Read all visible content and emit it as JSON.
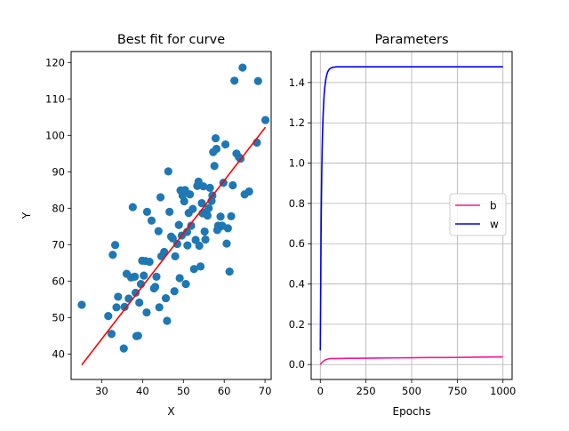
{
  "chart_data": [
    {
      "type": "scatter",
      "title": "Best fit for curve",
      "xlabel": "X",
      "ylabel": "Y",
      "xlim": [
        22.5,
        71.5
      ],
      "ylim": [
        33,
        123
      ],
      "xticks": [
        30,
        40,
        50,
        60,
        70
      ],
      "yticks": [
        40,
        50,
        60,
        70,
        80,
        90,
        100,
        110,
        120
      ],
      "grid": false,
      "colors": {
        "points": "#1f77b4",
        "fit_line": "#ff0000"
      },
      "fit_line": {
        "slope": 1.45,
        "intercept": 0.6,
        "x_range": [
          25.1,
          70.1
        ]
      },
      "points": [
        [
          25.1,
          53.5
        ],
        [
          31.6,
          50.4
        ],
        [
          32.4,
          45.5
        ],
        [
          32.7,
          67.2
        ],
        [
          33.3,
          69.9
        ],
        [
          33.6,
          52.8
        ],
        [
          34.0,
          55.7
        ],
        [
          35.4,
          41.5
        ],
        [
          35.6,
          52.9
        ],
        [
          36.1,
          62.0
        ],
        [
          36.6,
          55.2
        ],
        [
          37.2,
          61.0
        ],
        [
          37.6,
          80.3
        ],
        [
          38.1,
          61.2
        ],
        [
          38.3,
          56.8
        ],
        [
          38.5,
          44.9
        ],
        [
          38.9,
          45.0
        ],
        [
          39.2,
          54.1
        ],
        [
          39.6,
          59.2
        ],
        [
          39.9,
          65.6
        ],
        [
          40.3,
          61.5
        ],
        [
          40.7,
          65.5
        ],
        [
          41.0,
          51.4
        ],
        [
          41.1,
          79.0
        ],
        [
          41.7,
          65.3
        ],
        [
          42.2,
          76.6
        ],
        [
          42.8,
          58.0
        ],
        [
          43.1,
          58.4
        ],
        [
          43.4,
          61.2
        ],
        [
          43.9,
          73.7
        ],
        [
          44.1,
          52.8
        ],
        [
          44.4,
          83.0
        ],
        [
          44.6,
          66.8
        ],
        [
          45.3,
          68.0
        ],
        [
          45.7,
          55.3
        ],
        [
          46.0,
          49.1
        ],
        [
          46.3,
          90.1
        ],
        [
          46.6,
          79.0
        ],
        [
          47.0,
          72.2
        ],
        [
          47.4,
          71.7
        ],
        [
          47.8,
          57.2
        ],
        [
          48.0,
          66.8
        ],
        [
          48.5,
          70.2
        ],
        [
          48.9,
          75.4
        ],
        [
          49.1,
          60.8
        ],
        [
          49.3,
          84.9
        ],
        [
          49.6,
          72.5
        ],
        [
          49.8,
          83.5
        ],
        [
          50.2,
          81.9
        ],
        [
          50.4,
          85.0
        ],
        [
          50.6,
          59.2
        ],
        [
          50.9,
          73.5
        ],
        [
          51.0,
          69.8
        ],
        [
          51.3,
          78.7
        ],
        [
          51.6,
          83.8
        ],
        [
          51.9,
          75.2
        ],
        [
          52.3,
          79.8
        ],
        [
          52.6,
          63.3
        ],
        [
          53.0,
          71.3
        ],
        [
          53.4,
          86.1
        ],
        [
          53.7,
          87.3
        ],
        [
          53.9,
          69.7
        ],
        [
          54.2,
          64.0
        ],
        [
          54.5,
          81.4
        ],
        [
          54.7,
          78.6
        ],
        [
          54.9,
          86.0
        ],
        [
          55.2,
          73.6
        ],
        [
          55.4,
          71.4
        ],
        [
          55.6,
          79.0
        ],
        [
          55.9,
          78.0
        ],
        [
          56.2,
          80.0
        ],
        [
          56.5,
          85.6
        ],
        [
          56.9,
          82.0
        ],
        [
          57.1,
          83.5
        ],
        [
          57.3,
          95.4
        ],
        [
          57.6,
          91.6
        ],
        [
          57.9,
          99.2
        ],
        [
          58.1,
          96.3
        ],
        [
          58.3,
          74.0
        ],
        [
          58.5,
          75.2
        ],
        [
          58.8,
          74.8
        ],
        [
          59.1,
          77.7
        ],
        [
          59.5,
          75.2
        ],
        [
          59.8,
          87.0
        ],
        [
          60.3,
          97.5
        ],
        [
          60.6,
          70.3
        ],
        [
          60.9,
          74.5
        ],
        [
          61.3,
          62.6
        ],
        [
          61.7,
          77.8
        ],
        [
          62.1,
          86.3
        ],
        [
          62.5,
          115.0
        ],
        [
          63.0,
          95.0
        ],
        [
          63.6,
          94.0
        ],
        [
          64.0,
          93.6
        ],
        [
          64.5,
          118.6
        ],
        [
          65.0,
          83.8
        ],
        [
          66.1,
          84.6
        ],
        [
          68.0,
          98.0
        ],
        [
          68.3,
          114.9
        ],
        [
          70.1,
          104.2
        ]
      ]
    },
    {
      "type": "line",
      "title": "Parameters",
      "xlabel": "Epochs",
      "ylabel": "",
      "xlim": [
        -50,
        1050
      ],
      "ylim": [
        -0.074,
        1.554
      ],
      "xticks": [
        0,
        250,
        500,
        750,
        1000
      ],
      "yticks": [
        0.0,
        0.2,
        0.4,
        0.6,
        0.8,
        1.0,
        1.2,
        1.4
      ],
      "ytick_labels": [
        "0.0",
        "0.2",
        "0.4",
        "0.6",
        "0.8",
        "1.0",
        "1.2",
        "1.4"
      ],
      "grid": true,
      "legend_position": "center-right",
      "series": [
        {
          "name": "b",
          "color": "#ff1493",
          "x": [
            0,
            5,
            10,
            15,
            20,
            25,
            30,
            40,
            50,
            60,
            80,
            100,
            150,
            200,
            300,
            400,
            500,
            600,
            700,
            800,
            900,
            1000
          ],
          "values": [
            0.0,
            0.006,
            0.011,
            0.015,
            0.019,
            0.022,
            0.024,
            0.027,
            0.029,
            0.03,
            0.03,
            0.03,
            0.031,
            0.031,
            0.032,
            0.033,
            0.034,
            0.035,
            0.035,
            0.036,
            0.037,
            0.038
          ]
        },
        {
          "name": "w",
          "color": "#0000ff",
          "x": [
            0,
            2,
            4,
            6,
            8,
            10,
            12,
            15,
            18,
            21,
            25,
            30,
            35,
            40,
            45,
            50,
            60,
            70,
            80,
            90,
            100,
            120,
            150,
            200,
            300,
            400,
            500,
            600,
            700,
            800,
            900,
            1000
          ],
          "values": [
            0.07,
            0.35,
            0.63,
            0.82,
            0.96,
            1.06,
            1.14,
            1.23,
            1.29,
            1.34,
            1.38,
            1.415,
            1.437,
            1.452,
            1.461,
            1.467,
            1.473,
            1.476,
            1.477,
            1.478,
            1.478,
            1.478,
            1.478,
            1.478,
            1.478,
            1.478,
            1.478,
            1.478,
            1.478,
            1.478,
            1.478,
            1.478
          ]
        }
      ]
    }
  ]
}
